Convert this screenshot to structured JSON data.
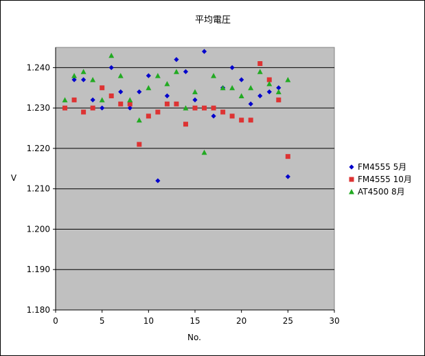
{
  "chart_data": {
    "type": "scatter",
    "title": "平均電圧",
    "xlabel": "No.",
    "ylabel": "V",
    "xlim": [
      0,
      30
    ],
    "ylim": [
      1.18,
      1.245
    ],
    "xticks": [
      "0",
      "5",
      "10",
      "15",
      "20",
      "25",
      "30"
    ],
    "xtick_values": [
      0,
      5,
      10,
      15,
      20,
      25,
      30
    ],
    "yticks": [
      "1.180",
      "1.190",
      "1.200",
      "1.210",
      "1.220",
      "1.230",
      "1.240"
    ],
    "ytick_values": [
      1.18,
      1.19,
      1.2,
      1.21,
      1.22,
      1.23,
      1.24
    ],
    "grid": "horizontal",
    "legend_position": "right",
    "plot_background": "#c0c0c0",
    "series": [
      {
        "name": "FM4555 5月",
        "marker": "diamond",
        "color": "#0000cc",
        "points": [
          [
            2,
            1.237
          ],
          [
            3,
            1.237
          ],
          [
            4,
            1.232
          ],
          [
            5,
            1.23
          ],
          [
            6,
            1.24
          ],
          [
            7,
            1.234
          ],
          [
            8,
            1.23
          ],
          [
            9,
            1.234
          ],
          [
            10,
            1.238
          ],
          [
            11,
            1.212
          ],
          [
            12,
            1.233
          ],
          [
            13,
            1.242
          ],
          [
            14,
            1.239
          ],
          [
            15,
            1.232
          ],
          [
            16,
            1.244
          ],
          [
            17,
            1.228
          ],
          [
            18,
            1.235
          ],
          [
            19,
            1.24
          ],
          [
            20,
            1.237
          ],
          [
            21,
            1.231
          ],
          [
            22,
            1.233
          ],
          [
            23,
            1.234
          ],
          [
            24,
            1.235
          ],
          [
            25,
            1.213
          ]
        ]
      },
      {
        "name": "FM4555 10月",
        "marker": "square",
        "color": "#dd3333",
        "points": [
          [
            1,
            1.23
          ],
          [
            2,
            1.232
          ],
          [
            3,
            1.229
          ],
          [
            4,
            1.23
          ],
          [
            5,
            1.235
          ],
          [
            6,
            1.233
          ],
          [
            7,
            1.231
          ],
          [
            8,
            1.231
          ],
          [
            9,
            1.221
          ],
          [
            10,
            1.228
          ],
          [
            11,
            1.229
          ],
          [
            12,
            1.231
          ],
          [
            13,
            1.231
          ],
          [
            14,
            1.226
          ],
          [
            15,
            1.23
          ],
          [
            16,
            1.23
          ],
          [
            17,
            1.23
          ],
          [
            18,
            1.229
          ],
          [
            19,
            1.228
          ],
          [
            20,
            1.227
          ],
          [
            21,
            1.227
          ],
          [
            22,
            1.241
          ],
          [
            23,
            1.237
          ],
          [
            24,
            1.232
          ],
          [
            25,
            1.218
          ]
        ]
      },
      {
        "name": "AT4500 8月",
        "marker": "triangle",
        "color": "#22aa22",
        "points": [
          [
            1,
            1.232
          ],
          [
            2,
            1.238
          ],
          [
            3,
            1.239
          ],
          [
            4,
            1.237
          ],
          [
            5,
            1.232
          ],
          [
            6,
            1.243
          ],
          [
            7,
            1.238
          ],
          [
            8,
            1.232
          ],
          [
            9,
            1.227
          ],
          [
            10,
            1.235
          ],
          [
            11,
            1.238
          ],
          [
            12,
            1.236
          ],
          [
            13,
            1.239
          ],
          [
            14,
            1.23
          ],
          [
            15,
            1.234
          ],
          [
            16,
            1.219
          ],
          [
            17,
            1.238
          ],
          [
            18,
            1.235
          ],
          [
            19,
            1.235
          ],
          [
            20,
            1.233
          ],
          [
            21,
            1.235
          ],
          [
            22,
            1.239
          ],
          [
            23,
            1.236
          ],
          [
            24,
            1.234
          ],
          [
            25,
            1.237
          ]
        ]
      }
    ]
  }
}
